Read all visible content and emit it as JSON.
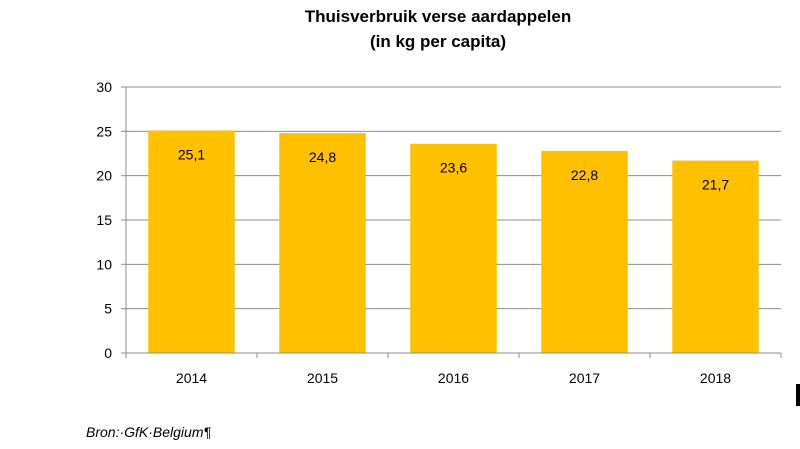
{
  "chart_data": {
    "type": "bar",
    "title": "Thuisverbruik verse aardappelen",
    "subtitle": "(in kg per capita)",
    "categories": [
      "2014",
      "2015",
      "2016",
      "2017",
      "2018"
    ],
    "values": [
      25.1,
      24.8,
      23.6,
      22.8,
      21.7
    ],
    "data_labels": [
      "25,1",
      "24,8",
      "23,6",
      "22,8",
      "21,7"
    ],
    "y_ticks": [
      0,
      5,
      10,
      15,
      20,
      25,
      30
    ],
    "ylim": [
      0,
      30
    ],
    "xlabel": "",
    "ylabel": "",
    "grid": true,
    "legend": "none",
    "bar_color": "#FFC000",
    "grid_color": "#8c8c8c"
  },
  "source": "Bron:·GfK·Belgium¶"
}
